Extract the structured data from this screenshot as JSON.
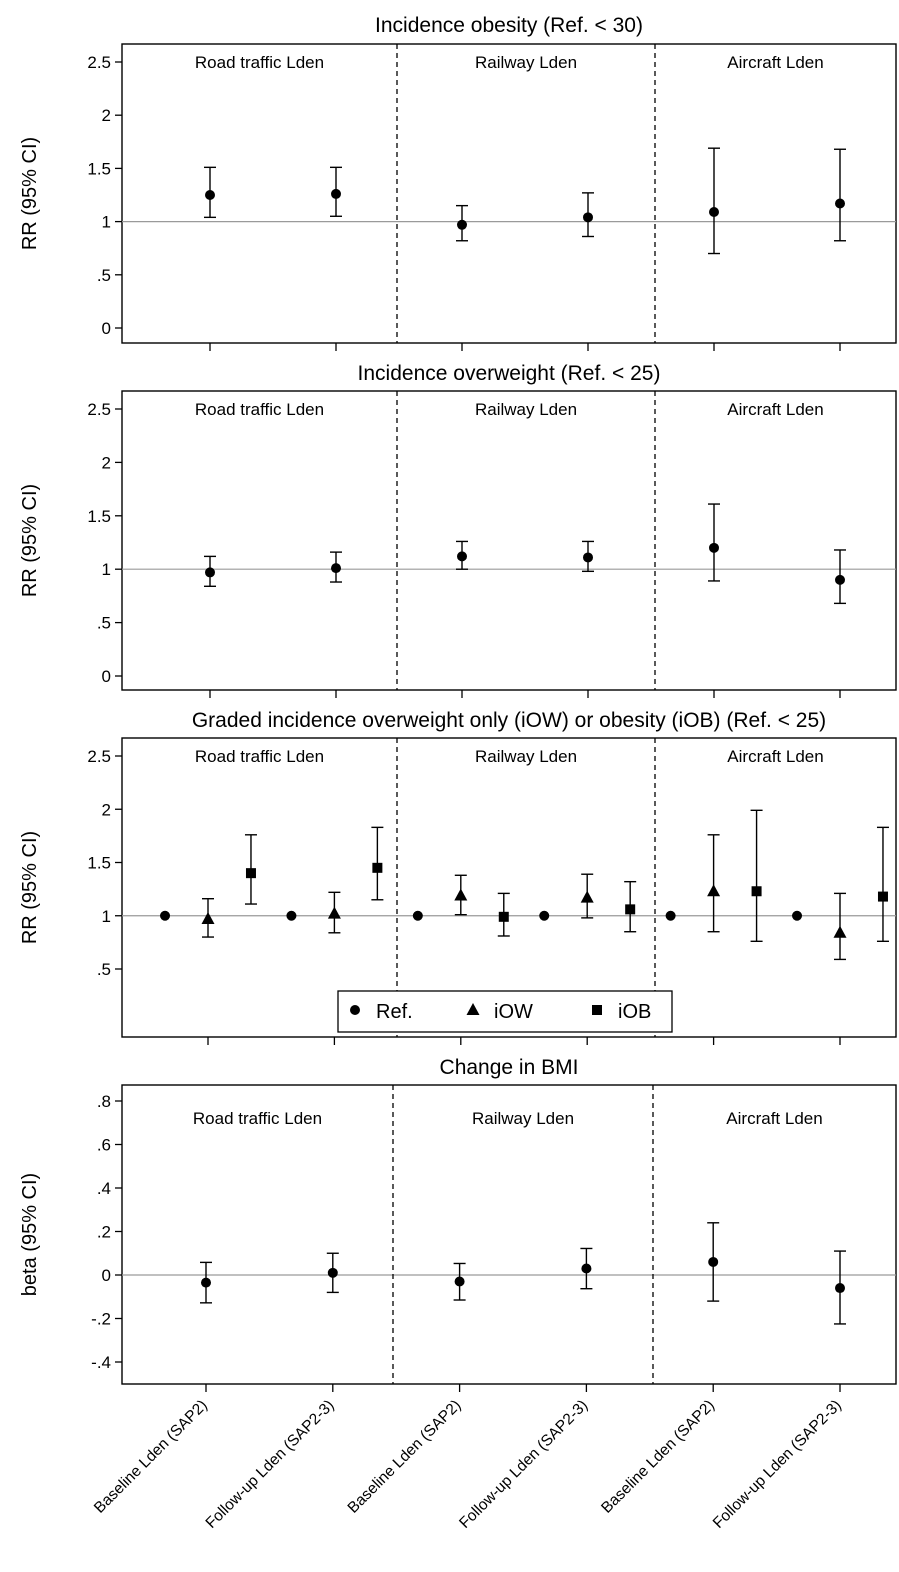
{
  "chart_data": [
    {
      "type": "scatter",
      "title": "Incidence obesity (Ref. < 30)",
      "ylabel": "RR (95% CI)",
      "ylim": [
        -0.1,
        2.7
      ],
      "yticks": [
        0,
        0.5,
        1,
        1.5,
        2,
        2.5
      ],
      "ytick_labels": [
        "0",
        ".5",
        "1",
        "1.5",
        "2",
        "2.5"
      ],
      "reference_line": 1,
      "groups": [
        "Road traffic Lden",
        "Railway Lden",
        "Aircraft Lden"
      ],
      "categories": [
        "Baseline Lden (SAP2)",
        "Follow-up Lden (SAP2-3)",
        "Baseline Lden (SAP2)",
        "Follow-up Lden (SAP2-3)",
        "Baseline Lden (SAP2)",
        "Follow-up Lden (SAP2-3)"
      ],
      "series": [
        {
          "marker": "circle",
          "points": [
            {
              "pos": 0,
              "y": 1.25,
              "lo": 1.04,
              "hi": 1.51
            },
            {
              "pos": 1,
              "y": 1.26,
              "lo": 1.05,
              "hi": 1.51
            },
            {
              "pos": 2,
              "y": 0.97,
              "lo": 0.82,
              "hi": 1.15
            },
            {
              "pos": 3,
              "y": 1.04,
              "lo": 0.86,
              "hi": 1.27
            },
            {
              "pos": 4,
              "y": 1.09,
              "lo": 0.7,
              "hi": 1.69
            },
            {
              "pos": 5,
              "y": 1.17,
              "lo": 0.82,
              "hi": 1.68
            }
          ]
        }
      ]
    },
    {
      "type": "scatter",
      "title": "Incidence overweight (Ref. < 25)",
      "ylabel": "RR (95% CI)",
      "ylim": [
        -0.1,
        2.7
      ],
      "yticks": [
        0,
        0.5,
        1,
        1.5,
        2,
        2.5
      ],
      "ytick_labels": [
        "0",
        ".5",
        "1",
        "1.5",
        "2",
        "2.5"
      ],
      "reference_line": 1,
      "groups": [
        "Road traffic Lden",
        "Railway Lden",
        "Aircraft Lden"
      ],
      "categories": [
        "Baseline Lden (SAP2)",
        "Follow-up Lden (SAP2-3)",
        "Baseline Lden (SAP2)",
        "Follow-up Lden (SAP2-3)",
        "Baseline Lden (SAP2)",
        "Follow-up Lden (SAP2-3)"
      ],
      "series": [
        {
          "marker": "circle",
          "points": [
            {
              "pos": 0,
              "y": 0.97,
              "lo": 0.84,
              "hi": 1.12
            },
            {
              "pos": 1,
              "y": 1.01,
              "lo": 0.88,
              "hi": 1.16
            },
            {
              "pos": 2,
              "y": 1.12,
              "lo": 1.0,
              "hi": 1.26
            },
            {
              "pos": 3,
              "y": 1.11,
              "lo": 0.98,
              "hi": 1.26
            },
            {
              "pos": 4,
              "y": 1.2,
              "lo": 0.89,
              "hi": 1.61
            },
            {
              "pos": 5,
              "y": 0.9,
              "lo": 0.68,
              "hi": 1.18
            }
          ]
        }
      ]
    },
    {
      "type": "scatter",
      "title": "Graded incidence overweight only (iOW) or obesity (iOB) (Ref. < 25)",
      "ylabel": "RR (95% CI)",
      "ylim": [
        -0.1,
        2.7
      ],
      "yticks": [
        0.5,
        1,
        1.5,
        2,
        2.5
      ],
      "ytick_labels": [
        ".5",
        "1",
        "1.5",
        "2",
        "2.5"
      ],
      "reference_line": 1,
      "groups": [
        "Road traffic Lden",
        "Railway Lden",
        "Aircraft Lden"
      ],
      "categories": [
        "Baseline Lden (SAP2)",
        "Follow-up Lden (SAP2-3)",
        "Baseline Lden (SAP2)",
        "Follow-up Lden (SAP2-3)",
        "Baseline Lden (SAP2)",
        "Follow-up Lden (SAP2-3)"
      ],
      "legend": [
        "Ref.",
        "iOW",
        "iOB"
      ],
      "legend_position": "bottom-center",
      "series": [
        {
          "name": "Ref.",
          "marker": "circle",
          "points": [
            {
              "pos": -0.34,
              "y": 1.0
            },
            {
              "pos": 0.66,
              "y": 1.0
            },
            {
              "pos": 1.66,
              "y": 1.0
            },
            {
              "pos": 2.66,
              "y": 1.0
            },
            {
              "pos": 3.66,
              "y": 1.0
            },
            {
              "pos": 4.66,
              "y": 1.0
            }
          ]
        },
        {
          "name": "iOW",
          "marker": "triangle",
          "points": [
            {
              "pos": 0,
              "y": 0.97,
              "lo": 0.8,
              "hi": 1.16
            },
            {
              "pos": 1,
              "y": 1.02,
              "lo": 0.84,
              "hi": 1.22
            },
            {
              "pos": 2,
              "y": 1.19,
              "lo": 1.01,
              "hi": 1.38
            },
            {
              "pos": 3,
              "y": 1.17,
              "lo": 0.98,
              "hi": 1.39
            },
            {
              "pos": 4,
              "y": 1.23,
              "lo": 0.85,
              "hi": 1.76
            },
            {
              "pos": 5,
              "y": 0.84,
              "lo": 0.59,
              "hi": 1.21
            }
          ]
        },
        {
          "name": "iOB",
          "marker": "square",
          "points": [
            {
              "pos": 0.34,
              "y": 1.4,
              "lo": 1.11,
              "hi": 1.76
            },
            {
              "pos": 1.34,
              "y": 1.45,
              "lo": 1.15,
              "hi": 1.83
            },
            {
              "pos": 2.34,
              "y": 0.99,
              "lo": 0.81,
              "hi": 1.21
            },
            {
              "pos": 3.34,
              "y": 1.06,
              "lo": 0.85,
              "hi": 1.32
            },
            {
              "pos": 4.34,
              "y": 1.23,
              "lo": 0.76,
              "hi": 1.99
            },
            {
              "pos": 5.34,
              "y": 1.18,
              "lo": 0.76,
              "hi": 1.83
            }
          ]
        }
      ]
    },
    {
      "type": "scatter",
      "title": "Change in BMI",
      "ylabel": "beta (95% CI)",
      "ylim": [
        -0.48,
        0.87
      ],
      "yticks": [
        -0.4,
        -0.2,
        0,
        0.2,
        0.4,
        0.6,
        0.8
      ],
      "ytick_labels": [
        "-.4",
        "-.2",
        "0",
        ".2",
        ".4",
        ".6",
        ".8"
      ],
      "reference_line": 0,
      "groups": [
        "Road traffic Lden",
        "Railway Lden",
        "Aircraft Lden"
      ],
      "categories": [
        "Baseline Lden (SAP2)",
        "Follow-up Lden (SAP2-3)",
        "Baseline Lden (SAP2)",
        "Follow-up Lden (SAP2-3)",
        "Baseline Lden (SAP2)",
        "Follow-up Lden (SAP2-3)"
      ],
      "series": [
        {
          "marker": "circle",
          "points": [
            {
              "pos": 0,
              "y": -0.035,
              "lo": -0.128,
              "hi": 0.058
            },
            {
              "pos": 1,
              "y": 0.01,
              "lo": -0.08,
              "hi": 0.1
            },
            {
              "pos": 2,
              "y": -0.03,
              "lo": -0.115,
              "hi": 0.053
            },
            {
              "pos": 3,
              "y": 0.03,
              "lo": -0.063,
              "hi": 0.122
            },
            {
              "pos": 4,
              "y": 0.06,
              "lo": -0.12,
              "hi": 0.24
            },
            {
              "pos": 5,
              "y": -0.06,
              "lo": -0.225,
              "hi": 0.11
            }
          ]
        }
      ]
    }
  ]
}
